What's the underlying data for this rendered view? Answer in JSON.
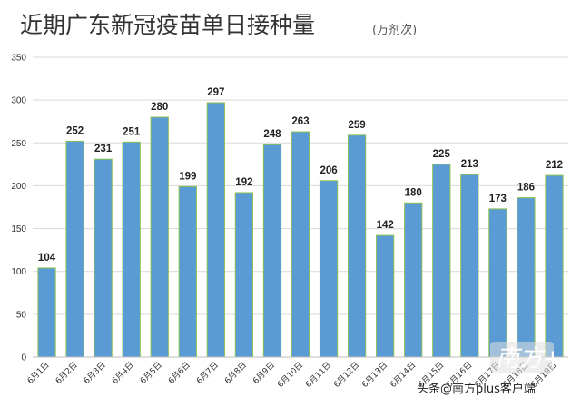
{
  "chart_data": {
    "type": "bar",
    "title": "近期广东新冠疫苗单日接种量",
    "unit": "(万剂次)",
    "categories": [
      "6月1日",
      "6月2日",
      "6月3日",
      "6月4日",
      "6月5日",
      "6月6日",
      "6月7日",
      "6月8日",
      "6月9日",
      "6月10日",
      "6月11日",
      "6月12日",
      "6月13日",
      "6月14日",
      "6月15日",
      "6月16日",
      "6月17日",
      "6月18日",
      "6月19日"
    ],
    "values": [
      104,
      252,
      231,
      251,
      280,
      199,
      297,
      192,
      248,
      263,
      206,
      259,
      142,
      180,
      225,
      213,
      173,
      186,
      212
    ],
    "ylim": [
      0,
      350
    ],
    "yticks": [
      0,
      50,
      100,
      150,
      200,
      250,
      300,
      350
    ],
    "grid": true,
    "bar_color": "#5b9bd5",
    "bar_edge_color": "#8cc152"
  },
  "watermark": {
    "text": "头条@南方plus客户端",
    "logo": "南方+"
  }
}
